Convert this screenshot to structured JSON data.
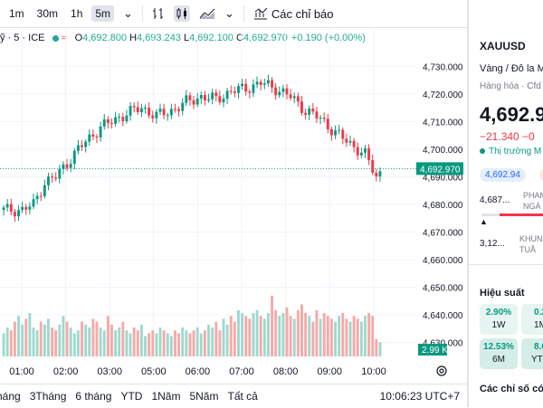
{
  "toolbar": {
    "timeframes": [
      "1m",
      "30m",
      "1h",
      "5m"
    ],
    "active_timeframe": "5m",
    "chevron": "⌄",
    "indicators_label": "Các chỉ báo"
  },
  "legend": {
    "symbol": "ỹ · 5 · ICE",
    "wave": "≈",
    "open_k": "O",
    "open_v": "4,692.800",
    "high_k": "H",
    "high_v": "4,693.243",
    "low_k": "L",
    "low_v": "4,692.100",
    "close_k": "C",
    "close_v": "4,692.970",
    "change": "+0.190 (+0.00%)"
  },
  "price_axis": {
    "ticks": [
      "4,730.000",
      "4,720.000",
      "4,710.000",
      "4,700.000",
      "4,690.000",
      "4,680.000",
      "4,670.000",
      "4,660.000",
      "4,650.000",
      "4,640.000",
      "4,630.000"
    ],
    "current_price": "4,692.970",
    "volume_badge": "2.99 K"
  },
  "time_axis": {
    "ticks": [
      "01:00",
      "02:00",
      "03:00",
      "05:00",
      "06:00",
      "07:00",
      "08:00",
      "09:00",
      "10:00"
    ]
  },
  "bottom_bar": {
    "ranges": [
      "háng",
      "3Tháng",
      "6 tháng",
      "YTD",
      "1Năm",
      "5Năm",
      "Tất cả"
    ],
    "clock": "10:06:23 UTC+7"
  },
  "panel": {
    "symbol": "XAUUSD",
    "name": "Vàng / Đô la Mỹ",
    "type": "Hàng hóa · Cfd",
    "price_main": "4,692",
    "price_frac": ".9",
    "change": "−21.340  −0",
    "market": "Thị trường M",
    "pill1": "4,692.94",
    "pill2": "4",
    "range1_value": "4,687...",
    "range1_label": [
      "PHAM",
      "NGÀ"
    ],
    "range2_value": "3,12...",
    "range2_label": [
      "KHUN",
      "TUẦ"
    ],
    "triangle": "▲",
    "performance_title": "Hiệu suất",
    "performance": [
      {
        "value": "2.90%",
        "label": "1W",
        "bg": "#e6f5f1"
      },
      {
        "value": "0.2",
        "label": "1M",
        "bg": "#e6f5f1"
      },
      {
        "value": "12.53%",
        "label": "6M",
        "bg": "#d5ede7"
      },
      {
        "value": "8.6",
        "label": "YTD",
        "bg": "#d5ede7"
      }
    ],
    "indicators_title": "Các chỉ số có"
  },
  "chart_data": {
    "type": "candlestick",
    "x_labels": [
      "01:00",
      "02:00",
      "03:00",
      "05:00",
      "06:00",
      "07:00",
      "08:00",
      "09:00",
      "10:00"
    ],
    "ylim": [
      4625,
      4735
    ],
    "y_ticks": [
      4730,
      4720,
      4710,
      4700,
      4690,
      4680,
      4670,
      4660,
      4650,
      4640,
      4630
    ],
    "current_price": 4692.97,
    "close_path": [
      {
        "i": 0,
        "p": 4678
      },
      {
        "i": 5,
        "p": 4678
      },
      {
        "i": 8,
        "p": 4680
      },
      {
        "i": 11,
        "p": 4688
      },
      {
        "i": 14,
        "p": 4690
      },
      {
        "i": 17,
        "p": 4695
      },
      {
        "i": 20,
        "p": 4700
      },
      {
        "i": 23,
        "p": 4704
      },
      {
        "i": 26,
        "p": 4708
      },
      {
        "i": 29,
        "p": 4710
      },
      {
        "i": 33,
        "p": 4713
      },
      {
        "i": 37,
        "p": 4715
      },
      {
        "i": 41,
        "p": 4712
      },
      {
        "i": 45,
        "p": 4714
      },
      {
        "i": 49,
        "p": 4717
      },
      {
        "i": 53,
        "p": 4719
      },
      {
        "i": 57,
        "p": 4718
      },
      {
        "i": 61,
        "p": 4721
      },
      {
        "i": 65,
        "p": 4722
      },
      {
        "i": 69,
        "p": 4724
      },
      {
        "i": 73,
        "p": 4722
      },
      {
        "i": 77,
        "p": 4719
      },
      {
        "i": 81,
        "p": 4714
      },
      {
        "i": 85,
        "p": 4711
      },
      {
        "i": 89,
        "p": 4706
      },
      {
        "i": 93,
        "p": 4702
      },
      {
        "i": 97,
        "p": 4698
      },
      {
        "i": 100,
        "p": 4690
      },
      {
        "i": 102,
        "p": 4692.97
      }
    ],
    "volume": [
      8,
      10,
      9,
      12,
      14,
      11,
      13,
      15,
      10,
      9,
      12,
      11,
      13,
      10,
      9,
      11,
      14,
      12,
      10,
      8,
      9,
      12,
      11,
      10,
      13,
      12,
      10,
      9,
      14,
      11,
      9,
      10,
      12,
      9,
      8,
      10,
      9,
      11,
      7,
      8,
      9,
      8,
      10,
      9,
      8,
      7,
      9,
      8,
      10,
      9,
      8,
      9,
      10,
      8,
      9,
      11,
      10,
      12,
      9,
      13,
      11,
      14,
      12,
      16,
      15,
      14,
      13,
      15,
      16,
      14,
      13,
      15,
      21,
      16,
      14,
      15,
      17,
      14,
      13,
      16,
      18,
      15,
      14,
      12,
      16,
      13,
      15,
      14,
      13,
      12,
      14,
      15,
      13,
      12,
      14,
      13,
      12,
      14,
      15,
      14,
      6,
      5
    ]
  }
}
